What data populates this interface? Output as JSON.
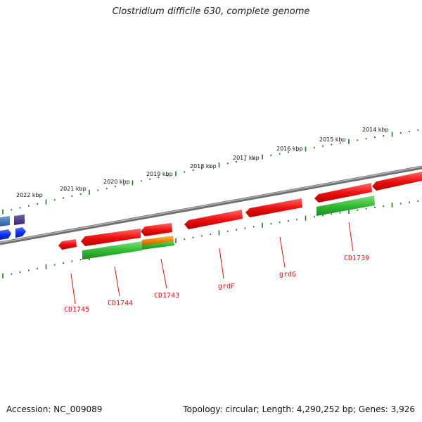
{
  "title": "Clostridium difficile 630, complete genome",
  "footer": {
    "accession_label": "Accession: ",
    "accession": "NC_009089",
    "topology_label": "Topology: ",
    "topology": "circular",
    "length_label": "; Length: ",
    "length": "4,290,252 bp",
    "genes_label": "; Genes: ",
    "genes": "3,926"
  },
  "colors": {
    "backbone": "#7a7a7a",
    "tick": "#1e7a1e",
    "gene_red": "#ee1111",
    "gene_green": "#33bb33",
    "gene_orange": "#ee8800",
    "gene_blue": "#1133ee",
    "gene_slate": "#3366aa",
    "gene_purple": "#443377",
    "label": "#dd1111"
  },
  "scale_labels": [
    "2022 kbp",
    "2021 kbp",
    "2020 kbp",
    "2019 kbp",
    "2018 kbp",
    "2017 kbp",
    "2016 kbp",
    "2015 kbp",
    "2014 kbp"
  ],
  "gene_labels": [
    "CD1745",
    "CD1744",
    "CD1743",
    "grdF",
    "grdG",
    "CD1739"
  ]
}
